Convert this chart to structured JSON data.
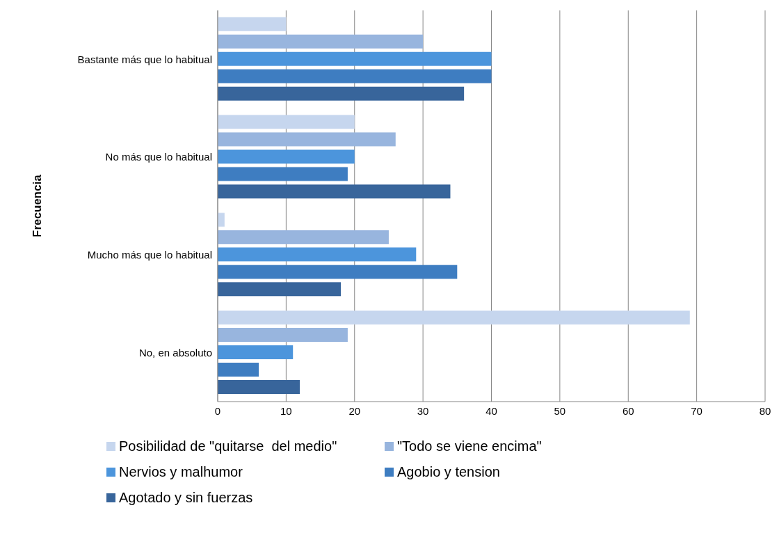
{
  "chart_data": {
    "type": "bar",
    "orientation": "horizontal",
    "ylabel": "Frecuencia",
    "categories": [
      "Bastante más que lo habitual",
      "No más que lo habitual",
      "Mucho más que lo habitual",
      "No, en absoluto"
    ],
    "series": [
      {
        "name": "Posibilidad de \"quitarse  del medio\"",
        "color": "#c6d6ee",
        "values": [
          10,
          20,
          1,
          69
        ]
      },
      {
        "name": "\"Todo se viene encima\"",
        "color": "#98b5de",
        "values": [
          30,
          26,
          25,
          19
        ]
      },
      {
        "name": "Nervios y malhumor",
        "color": "#4c95dc",
        "values": [
          40,
          20,
          29,
          11
        ]
      },
      {
        "name": "Agobio y tension",
        "color": "#3e7dc1",
        "values": [
          40,
          19,
          35,
          6
        ]
      },
      {
        "name": "Agotado y sin fuerzas",
        "color": "#38659b",
        "values": [
          36,
          34,
          18,
          12
        ]
      }
    ],
    "xlim": [
      0,
      80
    ],
    "xticks": [
      0,
      10,
      20,
      30,
      40,
      50,
      60,
      70,
      80
    ],
    "grid": "x",
    "legend": "bottom"
  }
}
